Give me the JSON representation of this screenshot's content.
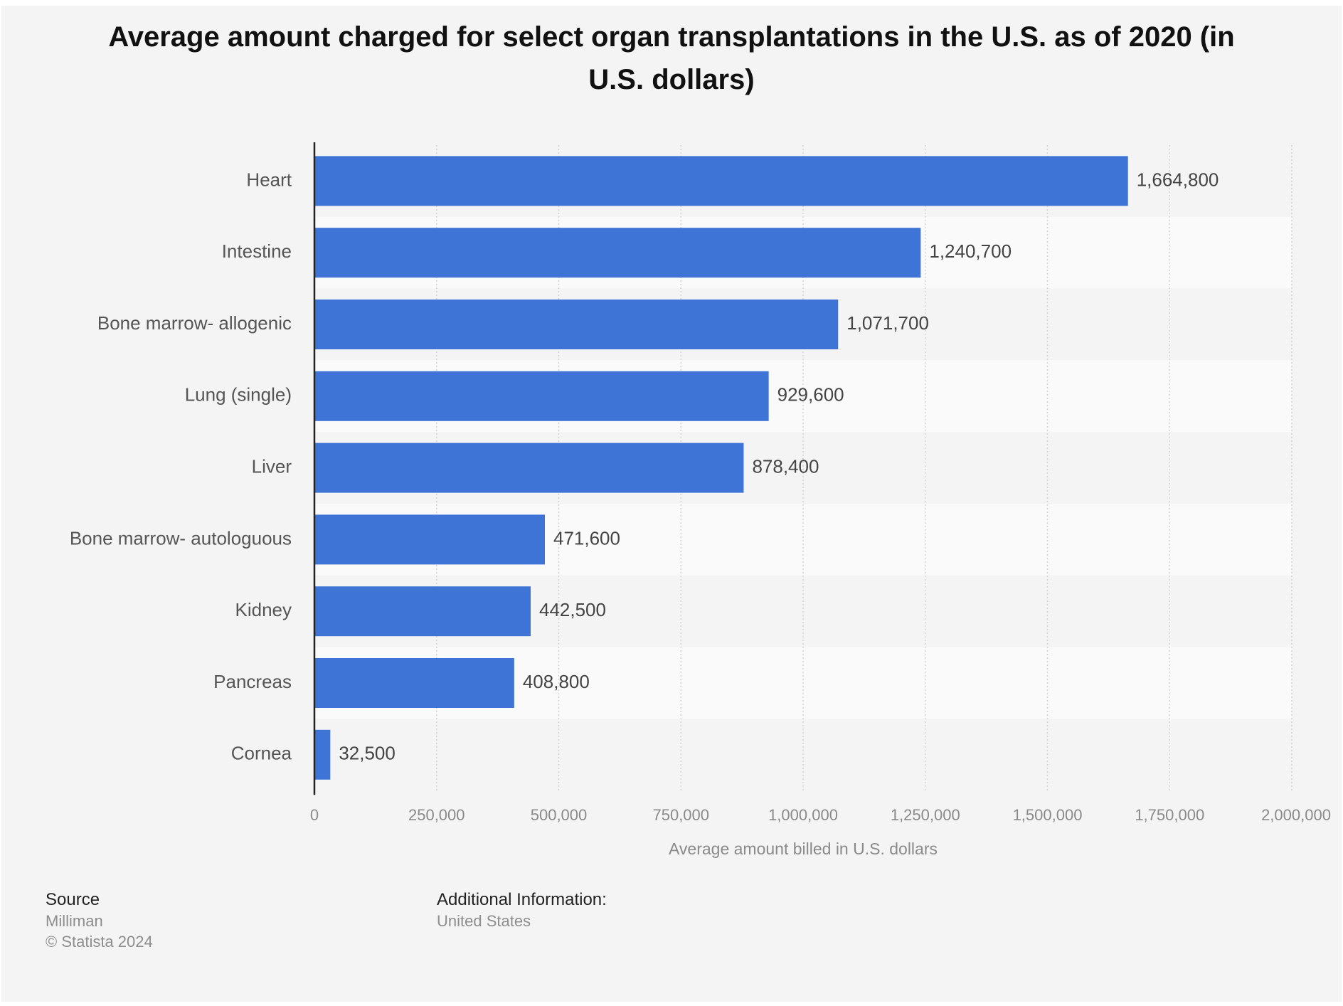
{
  "chart_data": {
    "type": "bar",
    "orientation": "horizontal",
    "title": "Average amount charged for select organ transplantations in the U.S. as of 2020 (in U.S. dollars)",
    "categories": [
      "Heart",
      "Intestine",
      "Bone marrow- allogenic",
      "Lung (single)",
      "Liver",
      "Bone marrow- autologuous",
      "Kidney",
      "Pancreas",
      "Cornea"
    ],
    "values": [
      1664800,
      1240700,
      1071700,
      929600,
      878400,
      471600,
      442500,
      408800,
      32500
    ],
    "value_labels": [
      "1,664,800",
      "1,240,700",
      "1,071,700",
      "929,600",
      "878,400",
      "471,600",
      "442,500",
      "408,800",
      "32,500"
    ],
    "xlabel": "Average amount billed in U.S. dollars",
    "ylabel": "",
    "xlim": [
      0,
      2000000
    ],
    "x_ticks": [
      0,
      250000,
      500000,
      750000,
      1000000,
      1250000,
      1500000,
      1750000,
      2000000
    ],
    "x_tick_labels": [
      "0",
      "250,000",
      "500,000",
      "750,000",
      "1,000,000",
      "1,250,000",
      "1,500,000",
      "1,750,000",
      "2,000,000"
    ],
    "grid": true,
    "legend": "none",
    "bar_color": "#3e74d6"
  },
  "footer": {
    "source_heading": "Source",
    "source_name": "Milliman",
    "copyright": "© Statista 2024",
    "additional_heading": "Additional Information:",
    "additional_text": "United States"
  }
}
